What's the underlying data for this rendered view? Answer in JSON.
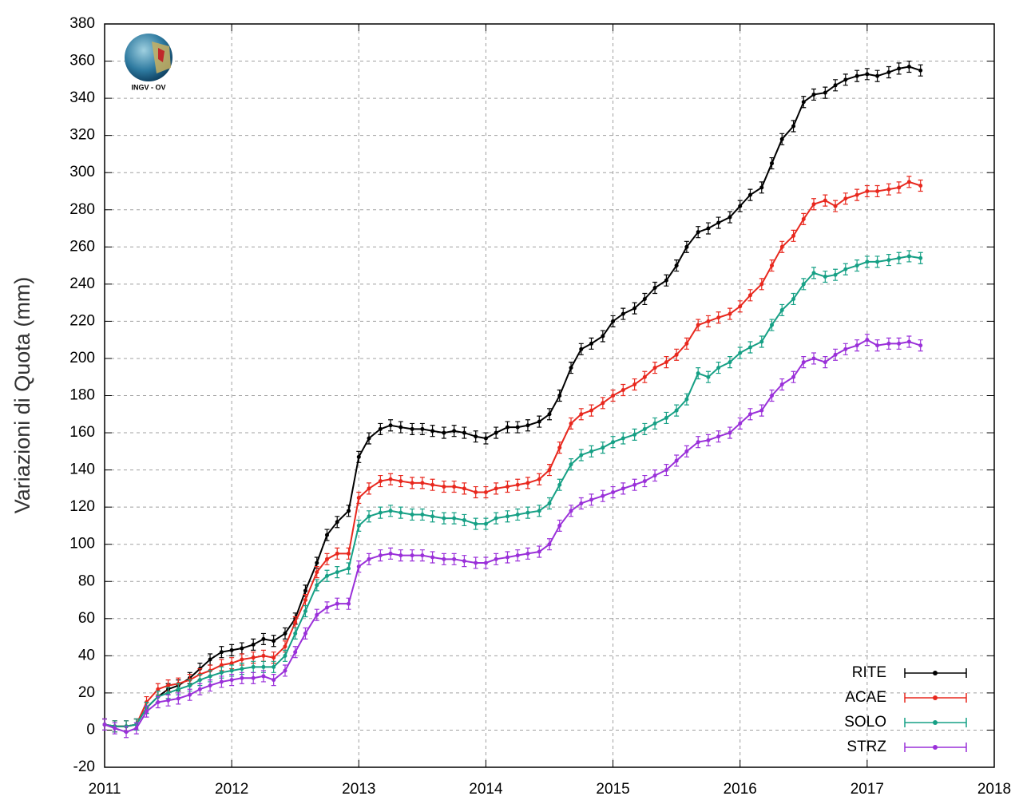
{
  "chart_data": {
    "type": "line",
    "y_label": "Variazioni di Quota (mm)",
    "logo_text": "INGV - OV",
    "xlim": [
      2011,
      2018
    ],
    "xticks": [
      2011,
      2012,
      2013,
      2014,
      2015,
      2016,
      2017,
      2018
    ],
    "ylim": [
      -20,
      380
    ],
    "yticks": [
      -20,
      0,
      20,
      40,
      60,
      80,
      100,
      120,
      140,
      160,
      180,
      200,
      220,
      240,
      260,
      280,
      300,
      320,
      340,
      360,
      380
    ],
    "grid": true,
    "legend": "lower right",
    "x": [
      2011,
      2011.08,
      2011.17,
      2011.25,
      2011.33,
      2011.42,
      2011.5,
      2011.58,
      2011.67,
      2011.75,
      2011.83,
      2011.92,
      2012,
      2012.08,
      2012.17,
      2012.25,
      2012.33,
      2012.42,
      2012.5,
      2012.58,
      2012.67,
      2012.75,
      2012.83,
      2012.92,
      2013,
      2013.08,
      2013.17,
      2013.25,
      2013.33,
      2013.42,
      2013.5,
      2013.58,
      2013.67,
      2013.75,
      2013.83,
      2013.92,
      2014,
      2014.08,
      2014.17,
      2014.25,
      2014.33,
      2014.42,
      2014.5,
      2014.58,
      2014.67,
      2014.75,
      2014.83,
      2014.92,
      2015,
      2015.08,
      2015.17,
      2015.25,
      2015.33,
      2015.42,
      2015.5,
      2015.58,
      2015.67,
      2015.75,
      2015.83,
      2015.92,
      2016,
      2016.08,
      2016.17,
      2016.25,
      2016.33,
      2016.42,
      2016.5,
      2016.58,
      2016.67,
      2016.75,
      2016.83,
      2016.92,
      2017,
      2017.08,
      2017.17,
      2017.25,
      2017.33,
      2017.42
    ],
    "series": [
      {
        "name": "RITE",
        "color": "#000000",
        "error": 3,
        "values": [
          3,
          2,
          2,
          3,
          12,
          18,
          22,
          24,
          28,
          33,
          38,
          42,
          43,
          44,
          46,
          49,
          48,
          52,
          60,
          75,
          90,
          105,
          112,
          118,
          147,
          157,
          162,
          164,
          163,
          162,
          162,
          161,
          160,
          161,
          160,
          158,
          157,
          160,
          163,
          163,
          164,
          166,
          170,
          180,
          195,
          205,
          208,
          212,
          220,
          224,
          227,
          232,
          238,
          242,
          250,
          260,
          268,
          270,
          273,
          276,
          282,
          288,
          292,
          305,
          318,
          325,
          338,
          342,
          343,
          347,
          350,
          352,
          353,
          352,
          354,
          356,
          357,
          355
        ]
      },
      {
        "name": "ACAE",
        "color": "#e8281e",
        "error": 3,
        "values": [
          3,
          2,
          2,
          3,
          15,
          22,
          24,
          25,
          27,
          30,
          32,
          35,
          36,
          38,
          39,
          40,
          39,
          45,
          58,
          70,
          85,
          92,
          95,
          95,
          125,
          130,
          134,
          135,
          134,
          133,
          133,
          132,
          131,
          131,
          130,
          128,
          128,
          130,
          131,
          132,
          133,
          135,
          140,
          152,
          165,
          170,
          172,
          176,
          180,
          183,
          186,
          190,
          195,
          198,
          202,
          208,
          218,
          220,
          222,
          224,
          228,
          234,
          240,
          250,
          260,
          266,
          275,
          283,
          285,
          282,
          286,
          288,
          290,
          290,
          291,
          292,
          295,
          293
        ]
      },
      {
        "name": "SOLO",
        "color": "#16a085",
        "error": 3,
        "values": [
          3,
          2,
          2,
          3,
          12,
          18,
          20,
          22,
          24,
          27,
          29,
          31,
          32,
          33,
          34,
          34,
          34,
          40,
          52,
          64,
          78,
          83,
          85,
          87,
          110,
          115,
          117,
          118,
          117,
          116,
          116,
          115,
          114,
          114,
          113,
          111,
          111,
          114,
          115,
          116,
          117,
          118,
          122,
          132,
          143,
          148,
          150,
          152,
          155,
          157,
          159,
          162,
          165,
          168,
          172,
          178,
          192,
          190,
          195,
          198,
          203,
          206,
          209,
          218,
          226,
          232,
          240,
          246,
          244,
          245,
          248,
          250,
          252,
          252,
          253,
          254,
          255,
          254
        ]
      },
      {
        "name": "STRZ",
        "color": "#9a30d9",
        "error": 3,
        "values": [
          3,
          1,
          -1,
          1,
          10,
          15,
          16,
          17,
          19,
          22,
          24,
          26,
          27,
          28,
          28,
          29,
          27,
          32,
          42,
          52,
          62,
          66,
          68,
          68,
          88,
          92,
          94,
          95,
          94,
          94,
          94,
          93,
          92,
          92,
          91,
          90,
          90,
          92,
          93,
          94,
          95,
          96,
          100,
          110,
          118,
          122,
          124,
          126,
          128,
          130,
          132,
          134,
          137,
          140,
          145,
          150,
          155,
          156,
          158,
          160,
          165,
          170,
          172,
          180,
          186,
          190,
          198,
          200,
          198,
          202,
          205,
          207,
          210,
          207,
          208,
          208,
          209,
          207
        ]
      }
    ]
  }
}
